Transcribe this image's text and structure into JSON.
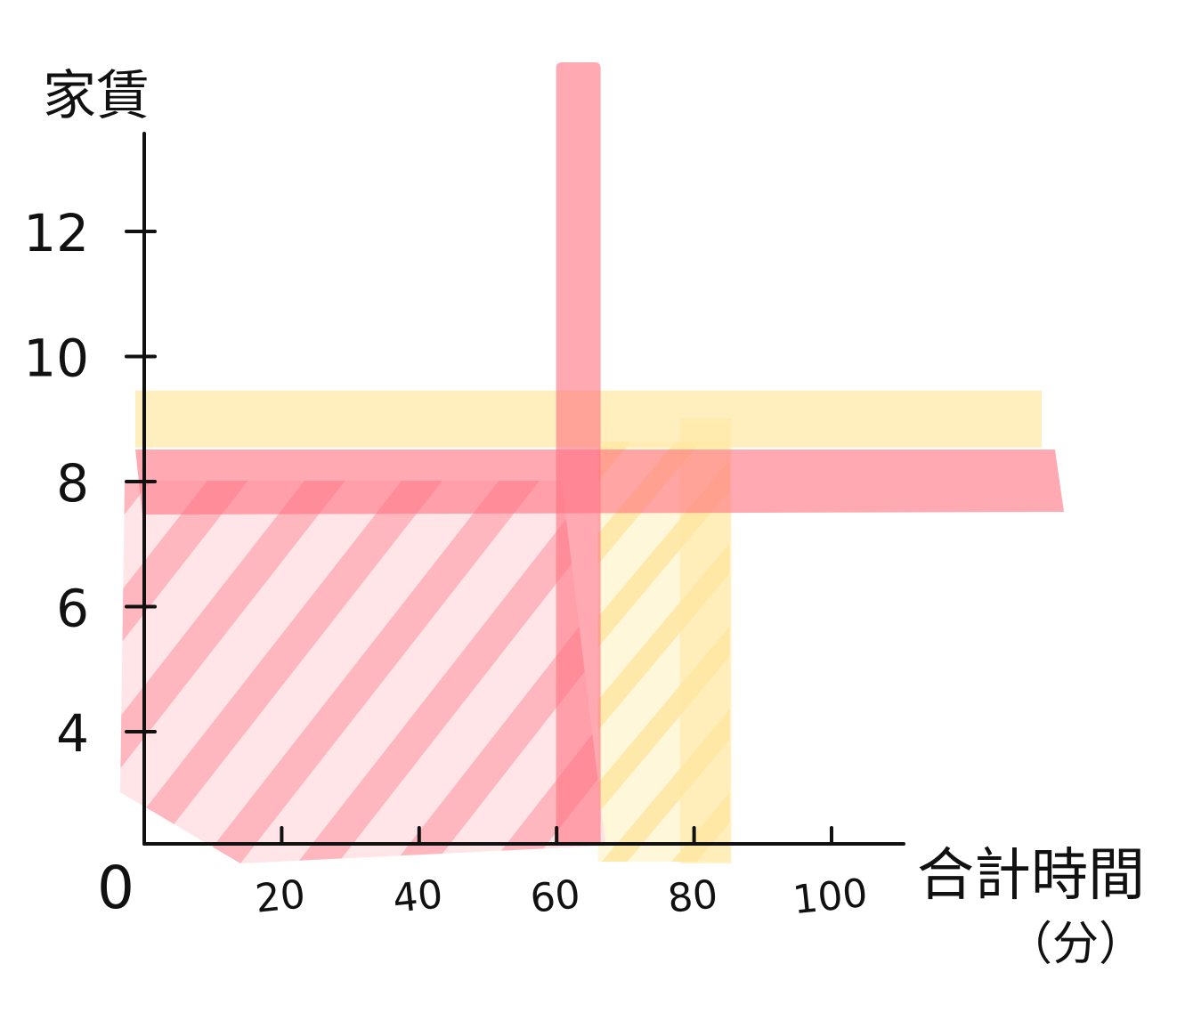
{
  "chart_data": {
    "type": "area",
    "title": "",
    "xlabel": "合計時間",
    "xlabel_unit": "（分）",
    "ylabel": "家賃",
    "origin_label": "0",
    "x_ticks": [
      20,
      40,
      60,
      80,
      100
    ],
    "y_ticks": [
      4,
      6,
      8,
      10,
      12
    ],
    "xlim": [
      0,
      110
    ],
    "ylim": [
      2,
      15
    ],
    "grid": false,
    "series": [
      {
        "color": "#ff8a96",
        "x_threshold": 62,
        "y_threshold": 8
      },
      {
        "color": "#ffe9a8",
        "x_threshold": 80,
        "y_threshold": 9
      }
    ]
  }
}
